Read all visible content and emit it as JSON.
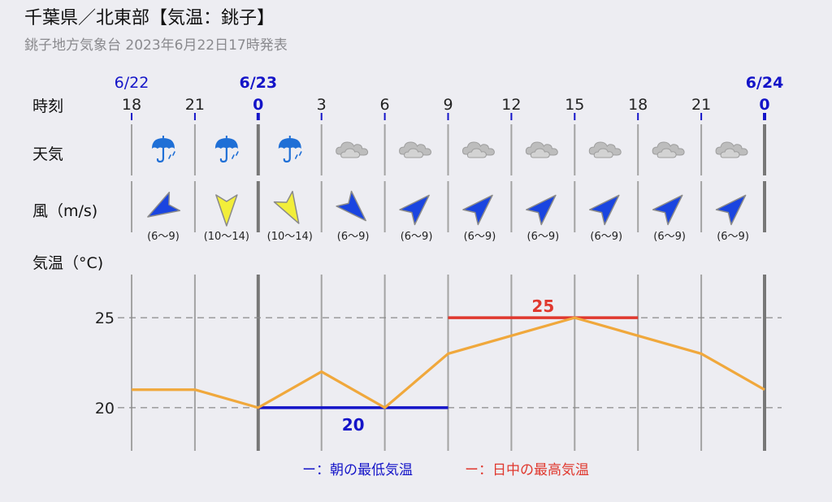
{
  "header": {
    "title": "千葉県／北東部【気温：銚子】",
    "subtitle": "銚子地方気象台 2023年6月22日17時発表"
  },
  "row_labels": {
    "time": "時刻",
    "weather": "天気",
    "wind": "風（m/s)",
    "temperature": "気温（°C)"
  },
  "timeline": {
    "dates": [
      {
        "label": "6/22",
        "slot": 0,
        "bold": false
      },
      {
        "label": "6/23",
        "slot": 2,
        "bold": true
      },
      {
        "label": "6/24",
        "slot": 10,
        "bold": true
      }
    ],
    "hours": [
      "18",
      "21",
      "0",
      "3",
      "6",
      "9",
      "12",
      "15",
      "18",
      "21",
      "0"
    ],
    "day_boundaries": [
      2,
      10
    ]
  },
  "weather": [
    {
      "icon": "umbrella-icon",
      "color": "#1f6fd6"
    },
    {
      "icon": "umbrella-icon",
      "color": "#1f6fd6"
    },
    {
      "icon": "umbrella-icon",
      "color": "#1f6fd6"
    },
    {
      "icon": "cloud-icon",
      "color": "#bdbdbd"
    },
    {
      "icon": "cloud-icon",
      "color": "#bdbdbd"
    },
    {
      "icon": "cloud-icon",
      "color": "#bdbdbd"
    },
    {
      "icon": "cloud-icon",
      "color": "#bdbdbd"
    },
    {
      "icon": "cloud-icon",
      "color": "#bdbdbd"
    },
    {
      "icon": "cloud-icon",
      "color": "#bdbdbd"
    },
    {
      "icon": "cloud-icon",
      "color": "#bdbdbd"
    }
  ],
  "wind": [
    {
      "speed": "(6～9)",
      "from_deg": 60,
      "color": "#1a45e0"
    },
    {
      "speed": "(10～14)",
      "from_deg": 0,
      "color": "#f2ee3a"
    },
    {
      "speed": "(10～14)",
      "from_deg": 330,
      "color": "#f2ee3a"
    },
    {
      "speed": "(6～9)",
      "from_deg": 315,
      "color": "#1a45e0"
    },
    {
      "speed": "(6～9)",
      "from_deg": 225,
      "color": "#1a45e0"
    },
    {
      "speed": "(6～9)",
      "from_deg": 225,
      "color": "#1a45e0"
    },
    {
      "speed": "(6～9)",
      "from_deg": 225,
      "color": "#1a45e0"
    },
    {
      "speed": "(6～9)",
      "from_deg": 225,
      "color": "#1a45e0"
    },
    {
      "speed": "(6～9)",
      "from_deg": 225,
      "color": "#1a45e0"
    },
    {
      "speed": "(6～9)",
      "from_deg": 225,
      "color": "#1a45e0"
    }
  ],
  "chart_data": {
    "type": "line",
    "x": [
      "18",
      "21",
      "0",
      "3",
      "6",
      "9",
      "12",
      "15",
      "18",
      "21",
      "0"
    ],
    "series": [
      {
        "values": [
          21,
          21,
          20,
          22,
          20,
          23,
          24,
          25,
          24,
          23,
          21
        ],
        "color": "#f0a83c"
      }
    ],
    "yticks": [
      20,
      25
    ],
    "ylim": [
      17.6,
      27.4
    ],
    "grid": "dashed horizontal at ticks",
    "min_temp": {
      "value": "20",
      "from_index": 2,
      "to_index": 5,
      "color": "#1414c8"
    },
    "max_temp": {
      "value": "25",
      "from_index": 5,
      "to_index": 8,
      "color": "#e0382e"
    }
  },
  "legend": {
    "min": {
      "symbol": "ー",
      "label": "：朝の最低気温",
      "color": "#1414c8"
    },
    "max": {
      "symbol": "ー",
      "label": "：日中の最高気温",
      "color": "#e0382e"
    }
  }
}
